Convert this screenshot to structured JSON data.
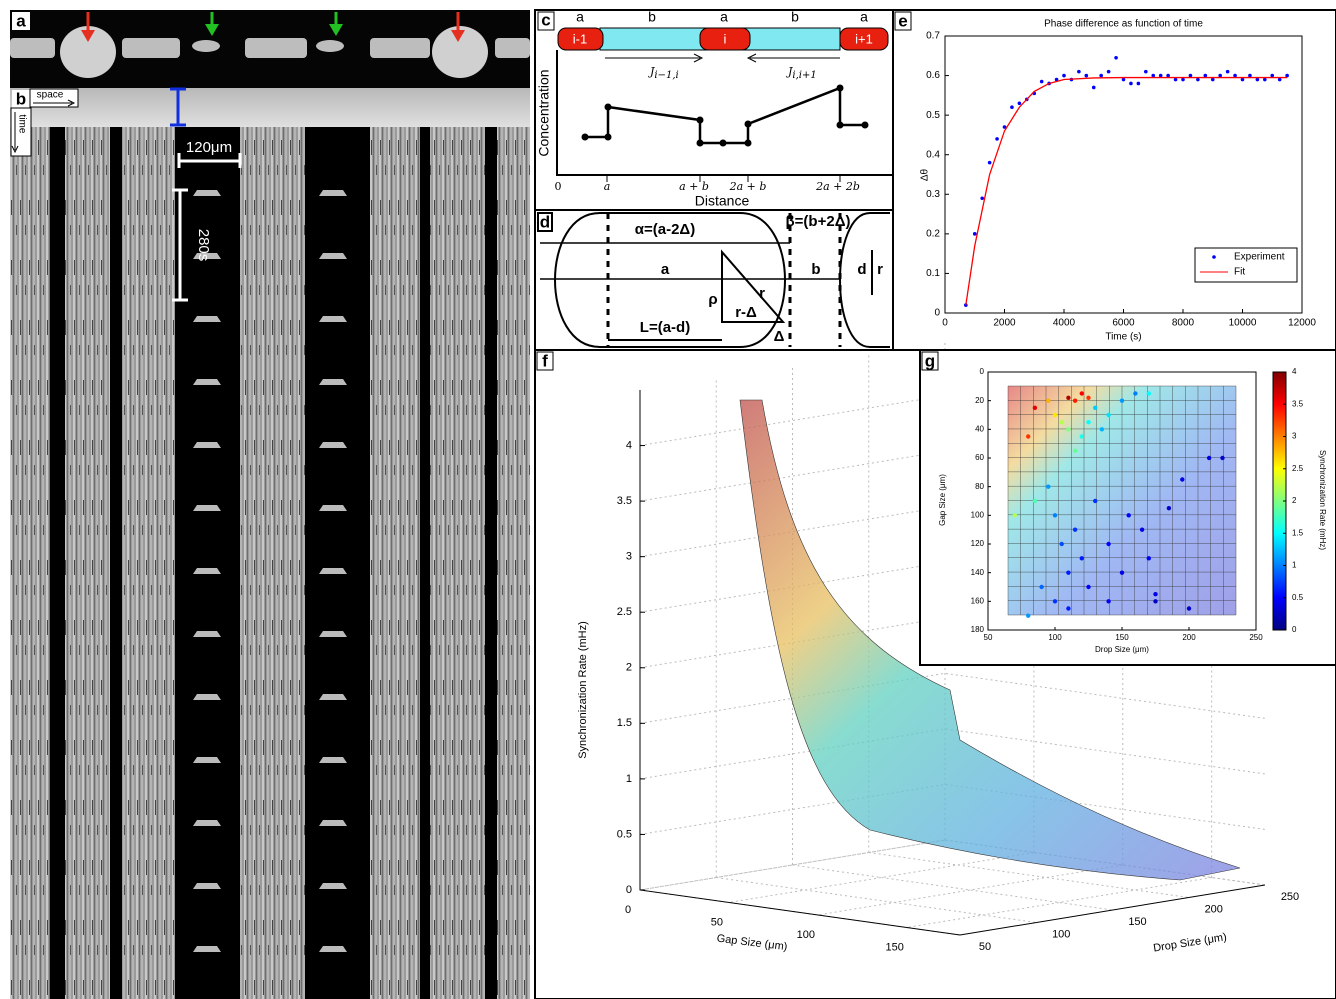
{
  "panels": {
    "a": {
      "label": "a"
    },
    "b": {
      "label": "b",
      "space": "space",
      "time": "time",
      "scale_length": "120μm",
      "scale_time": "280s"
    },
    "c": {
      "label": "c",
      "segments": [
        "a",
        "b",
        "a",
        "b",
        "a"
      ],
      "drops": [
        "i-1",
        "i",
        "i+1"
      ],
      "flux_left": {
        "symbol": "J",
        "sub": "i−1,i"
      },
      "flux_right": {
        "symbol": "J",
        "sub": "i,i+1"
      },
      "ylabel": "Concentration",
      "xlabel": "Distance",
      "xtick_labels": [
        "0",
        "a",
        "a + b",
        "2a + b",
        "2a + 2b"
      ]
    },
    "d": {
      "label": "d",
      "alpha": "α=(a-2Δ)",
      "beta": "β=(b+2Δ)",
      "a": "a",
      "b": "b",
      "d": "d",
      "r_side": "r",
      "rho": "ρ",
      "r": "r",
      "r_minus_delta": "r-Δ",
      "L": "L=(a-d)",
      "delta": "Δ"
    },
    "e": {
      "label": "e"
    },
    "f": {
      "label": "f"
    },
    "g": {
      "label": "g"
    }
  },
  "chart_data": [
    {
      "type": "line",
      "title": "Phase difference as function of time",
      "xlabel": "Time (s)",
      "ylabel": "Δθ",
      "xlim": [
        0,
        12000
      ],
      "xticks": [
        0,
        2000,
        4000,
        6000,
        8000,
        10000,
        12000
      ],
      "ylim": [
        0,
        0.7
      ],
      "yticks": [
        0,
        0.1,
        0.2,
        0.3,
        0.4,
        0.5,
        0.6,
        0.7
      ],
      "legend": "lower right",
      "series": [
        {
          "name": "Experiment",
          "color": "#0000ff",
          "style": "markers",
          "x": [
            700,
            1000,
            1250,
            1500,
            1750,
            2000,
            2250,
            2500,
            2750,
            3000,
            3250,
            3500,
            3750,
            4000,
            4250,
            4500,
            4750,
            5000,
            5250,
            5500,
            5750,
            6000,
            6250,
            6500,
            6750,
            7000,
            7250,
            7500,
            7750,
            8000,
            8250,
            8500,
            8750,
            9000,
            9250,
            9500,
            9750,
            10000,
            10250,
            10500,
            10750,
            11000,
            11250,
            11500
          ],
          "values": [
            0.02,
            0.2,
            0.29,
            0.38,
            0.44,
            0.47,
            0.52,
            0.53,
            0.54,
            0.555,
            0.585,
            0.58,
            0.59,
            0.6,
            0.59,
            0.61,
            0.6,
            0.57,
            0.6,
            0.61,
            0.645,
            0.59,
            0.58,
            0.58,
            0.61,
            0.6,
            0.6,
            0.6,
            0.59,
            0.59,
            0.6,
            0.59,
            0.6,
            0.59,
            0.6,
            0.61,
            0.6,
            0.59,
            0.6,
            0.59,
            0.59,
            0.6,
            0.59,
            0.6
          ]
        },
        {
          "name": "Fit",
          "color": "#ff0000",
          "style": "line",
          "x": [
            700,
            1000,
            1500,
            2000,
            2500,
            3000,
            3500,
            4000,
            5000,
            6000,
            8000,
            10000,
            11500
          ],
          "values": [
            0.02,
            0.17,
            0.35,
            0.46,
            0.52,
            0.56,
            0.58,
            0.59,
            0.594,
            0.595,
            0.595,
            0.595,
            0.595
          ]
        }
      ]
    },
    {
      "type": "surface3d",
      "xlabel": "Gap Size (μm)",
      "ylabel": "Drop Size (μm)",
      "zlabel": "Synchronization Rate (mHz)",
      "xlim": [
        0,
        180
      ],
      "xticks": [
        0,
        50,
        100,
        150
      ],
      "ylim": [
        50,
        250
      ],
      "yticks": [
        50,
        100,
        150,
        200,
        250
      ],
      "zlim": [
        0,
        4.5
      ],
      "zticks": [
        0,
        0.5,
        1,
        1.5,
        2,
        2.5,
        3,
        3.5,
        4
      ],
      "grid": true
    },
    {
      "type": "scatter",
      "xlabel": "Drop Size (μm)",
      "ylabel": "Gap Size (μm)",
      "xlim": [
        50,
        250
      ],
      "xticks": [
        50,
        100,
        150,
        200,
        250
      ],
      "ylim": [
        0,
        180
      ],
      "yticks": [
        0,
        20,
        40,
        60,
        80,
        100,
        120,
        140,
        160,
        180
      ],
      "y_inverted": true,
      "colorbar": {
        "label": "Synchronization Rate (mHz)",
        "lim": [
          0,
          4
        ],
        "ticks": [
          0,
          0.5,
          1,
          1.5,
          2,
          2.5,
          3,
          3.5,
          4
        ],
        "colormap": "jet"
      },
      "x": [
        80,
        85,
        95,
        110,
        115,
        120,
        125,
        100,
        105,
        110,
        115,
        120,
        125,
        130,
        135,
        140,
        150,
        160,
        170,
        70,
        85,
        95,
        100,
        105,
        110,
        115,
        120,
        125,
        130,
        140,
        150,
        155,
        165,
        170,
        175,
        185,
        195,
        200,
        215,
        225,
        100,
        110,
        90,
        80,
        175,
        140
      ],
      "y": [
        45,
        25,
        20,
        18,
        20,
        15,
        18,
        30,
        35,
        40,
        55,
        45,
        35,
        25,
        40,
        30,
        20,
        15,
        15,
        100,
        90,
        80,
        100,
        120,
        140,
        110,
        130,
        150,
        90,
        120,
        140,
        100,
        110,
        130,
        155,
        95,
        75,
        165,
        60,
        60,
        160,
        165,
        150,
        170,
        160,
        160
      ],
      "values": [
        3.3,
        3.6,
        2.8,
        3.8,
        3.4,
        3.5,
        3.3,
        2.6,
        2.2,
        2,
        1.9,
        1.6,
        1.5,
        1.3,
        1.2,
        1.4,
        1.1,
        1,
        1.5,
        2.2,
        1.8,
        1.1,
        1,
        0.8,
        0.6,
        0.7,
        0.6,
        0.5,
        0.7,
        0.5,
        0.4,
        0.5,
        0.4,
        0.5,
        0.4,
        0.3,
        0.4,
        0.3,
        0.4,
        0.3,
        0.7,
        0.6,
        0.9,
        1.1,
        0.3,
        0.5
      ]
    }
  ]
}
